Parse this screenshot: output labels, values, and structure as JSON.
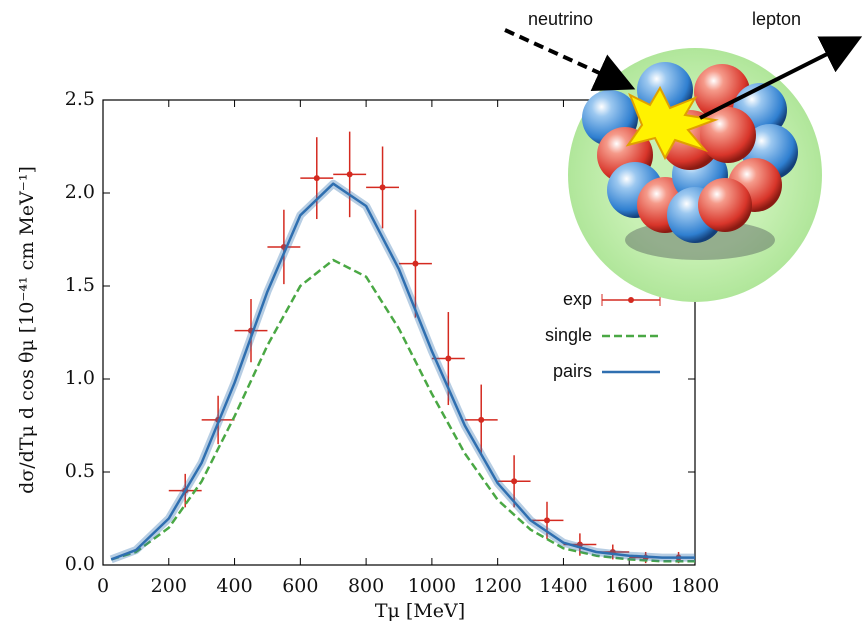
{
  "chart_data": {
    "type": "line",
    "x_label": "Tμ [MeV]",
    "y_label": "dσ/dTμ d cos θμ  [10⁻⁴¹ cm MeV⁻¹]",
    "xlim": [
      0,
      1800
    ],
    "ylim": [
      0,
      2.5
    ],
    "xticks": [
      0,
      200,
      400,
      600,
      800,
      1000,
      1200,
      1400,
      1600,
      1800
    ],
    "yticks": [
      {
        "value": 0,
        "label": "0.0"
      },
      {
        "value": 0.5,
        "label": "0.5"
      },
      {
        "value": 1,
        "label": "1.0"
      },
      {
        "value": 1.5,
        "label": "1.5"
      },
      {
        "value": 2,
        "label": "2.0"
      },
      {
        "value": 2.5,
        "label": "2.5"
      }
    ],
    "legend": "center right",
    "series": [
      {
        "name": "exp",
        "color": "#d42a20",
        "style": "errorbar",
        "x": [
          250,
          350,
          450,
          550,
          650,
          750,
          850,
          950,
          1050,
          1150,
          1250,
          1350,
          1450,
          1550,
          1650,
          1750
        ],
        "values": [
          0.4,
          0.78,
          1.26,
          1.71,
          2.08,
          2.1,
          2.03,
          1.62,
          1.11,
          0.78,
          0.45,
          0.24,
          0.11,
          0.07,
          0.04,
          0.04
        ],
        "yerr": [
          0.09,
          0.13,
          0.17,
          0.2,
          0.22,
          0.23,
          0.22,
          0.29,
          0.25,
          0.19,
          0.14,
          0.1,
          0.06,
          0.04,
          0.03,
          0.03
        ],
        "xerr": [
          50,
          50,
          50,
          50,
          50,
          50,
          50,
          50,
          50,
          50,
          50,
          50,
          50,
          50,
          50,
          50
        ]
      },
      {
        "name": "single",
        "color": "#4aa844",
        "style": "dashed",
        "x": [
          25,
          100,
          200,
          300,
          400,
          500,
          600,
          700,
          800,
          900,
          1000,
          1100,
          1200,
          1300,
          1400,
          1500,
          1600,
          1700,
          1800
        ],
        "values": [
          0.03,
          0.07,
          0.2,
          0.45,
          0.8,
          1.18,
          1.5,
          1.64,
          1.55,
          1.27,
          0.92,
          0.6,
          0.35,
          0.19,
          0.09,
          0.05,
          0.03,
          0.02,
          0.02
        ]
      },
      {
        "name": "pairs",
        "color": "#2f6fb0",
        "style": "solid",
        "x": [
          25,
          100,
          200,
          300,
          400,
          500,
          600,
          700,
          800,
          900,
          1000,
          1100,
          1200,
          1300,
          1400,
          1500,
          1600,
          1700,
          1800
        ],
        "values": [
          0.03,
          0.08,
          0.25,
          0.55,
          0.98,
          1.47,
          1.88,
          2.05,
          1.93,
          1.59,
          1.15,
          0.75,
          0.44,
          0.24,
          0.12,
          0.07,
          0.05,
          0.04,
          0.04
        ]
      }
    ]
  },
  "illustration": {
    "incoming": "neutrino",
    "outgoing": "lepton"
  }
}
